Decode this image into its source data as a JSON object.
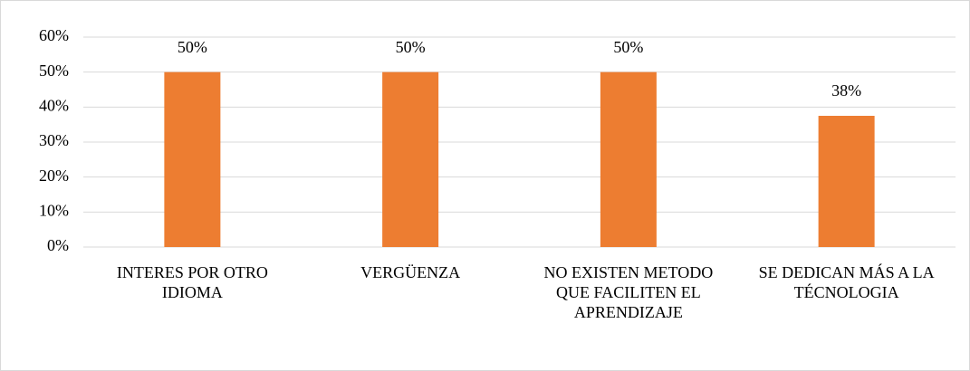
{
  "chart_data": {
    "type": "bar",
    "categories": [
      "INTERES POR OTRO IDIOMA",
      "VERGÜENZA",
      "NO EXISTEN METODO QUE FACILITEN EL APRENDIZAJE",
      "SE DEDICAN MÁS A LA TÉCNOLOGIA"
    ],
    "values": [
      50,
      50,
      50,
      37.5
    ],
    "value_labels": [
      "50%",
      "50%",
      "50%",
      "38%"
    ],
    "color": "#ed7d31",
    "ylim": [
      0,
      60
    ],
    "yticks": [
      {
        "value": 0,
        "label": "0%"
      },
      {
        "value": 10,
        "label": "10%"
      },
      {
        "value": 20,
        "label": "20%"
      },
      {
        "value": 30,
        "label": "30%"
      },
      {
        "value": 40,
        "label": "40%"
      },
      {
        "value": 50,
        "label": "50%"
      },
      {
        "value": 60,
        "label": "60%"
      }
    ],
    "grid": true
  }
}
